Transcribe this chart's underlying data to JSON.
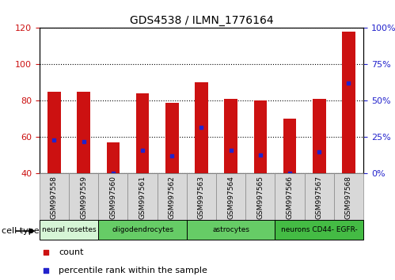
{
  "title": "GDS4538 / ILMN_1776164",
  "samples": [
    "GSM997558",
    "GSM997559",
    "GSM997560",
    "GSM997561",
    "GSM997562",
    "GSM997563",
    "GSM997564",
    "GSM997565",
    "GSM997566",
    "GSM997567",
    "GSM997568"
  ],
  "counts": [
    85,
    85,
    57,
    84,
    79,
    90,
    81,
    80,
    70,
    81,
    118
  ],
  "percentile_ranks": [
    23,
    22,
    0,
    16,
    12,
    32,
    16,
    13,
    0,
    15,
    62
  ],
  "ylim_left": [
    40,
    120
  ],
  "ylim_right": [
    0,
    100
  ],
  "y_ticks_left": [
    40,
    60,
    80,
    100,
    120
  ],
  "y_ticks_right": [
    0,
    25,
    50,
    75,
    100
  ],
  "cell_groups": [
    {
      "label": "neural rosettes",
      "indices": [
        0,
        1
      ],
      "color": "#d6f5d6"
    },
    {
      "label": "oligodendrocytes",
      "indices": [
        2,
        3,
        4
      ],
      "color": "#66cc66"
    },
    {
      "label": "astrocytes",
      "indices": [
        5,
        6,
        7
      ],
      "color": "#66cc66"
    },
    {
      "label": "neurons CD44- EGFR-",
      "indices": [
        8,
        9,
        10
      ],
      "color": "#44bb44"
    }
  ],
  "bar_color": "#cc1111",
  "marker_color": "#2222cc",
  "left_tick_color": "#cc1111",
  "right_tick_color": "#2222cc",
  "sample_box_color": "#d8d8d8",
  "background_color": "#ffffff"
}
